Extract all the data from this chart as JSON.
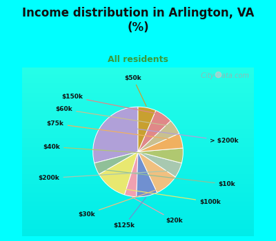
{
  "title": "Income distribution in Arlington, VA\n(%)",
  "subtitle": "All residents",
  "title_color": "#111111",
  "subtitle_color": "#3a9a3a",
  "background_top": "#00ffff",
  "background_chart_top": "#e8f8f8",
  "background_chart_bottom": "#d8f0e8",
  "labels": [
    "> $200k",
    "$10k",
    "$100k",
    "$20k",
    "$125k",
    "$30k",
    "$200k",
    "$40k",
    "$75k",
    "$60k",
    "$150k",
    "$50k"
  ],
  "values": [
    27,
    4,
    11,
    4,
    7,
    8,
    5,
    5,
    5,
    5,
    6,
    6
  ],
  "colors": [
    "#b0a0d8",
    "#90c098",
    "#e8e870",
    "#f0a0b0",
    "#7090d0",
    "#f0c080",
    "#a8c8b0",
    "#b0c870",
    "#f0b060",
    "#c8c090",
    "#e08888",
    "#c8a030"
  ],
  "startangle": 90,
  "watermark": "  City-Data.com"
}
